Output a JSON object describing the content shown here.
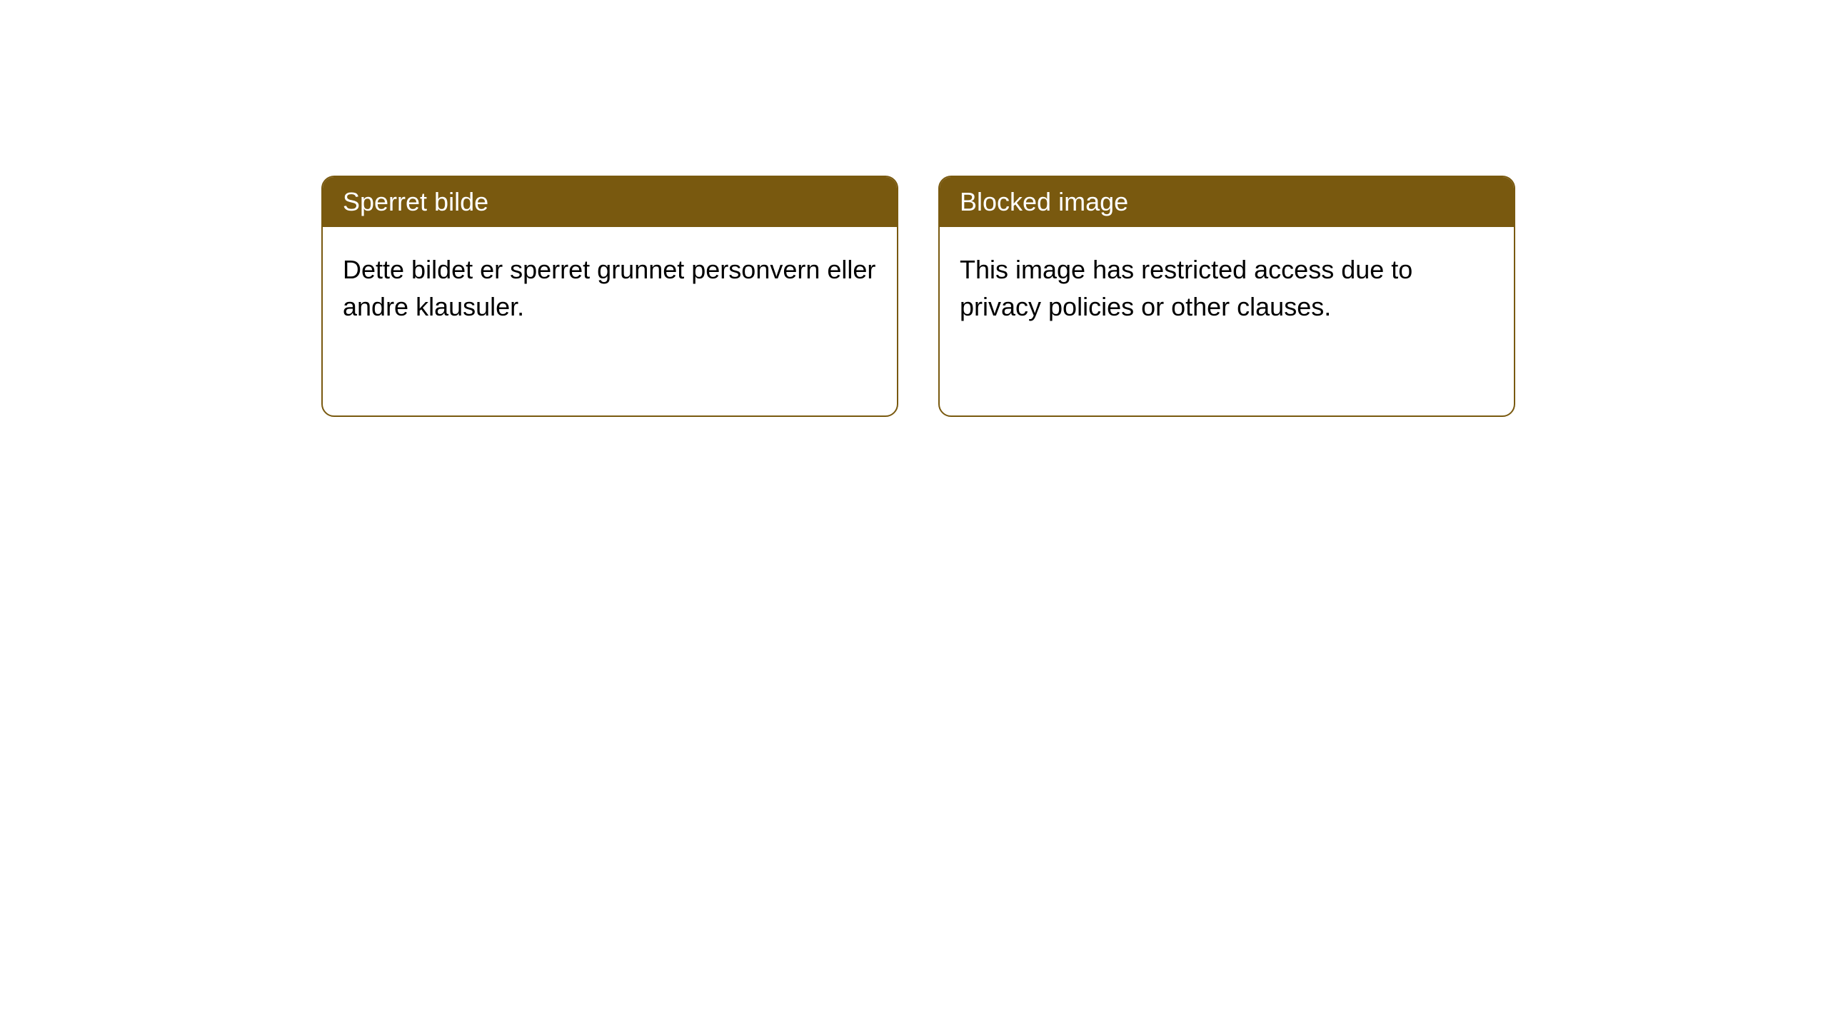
{
  "cards": [
    {
      "title": "Sperret bilde",
      "body": "Dette bildet er sperret grunnet personvern eller andre klausuler."
    },
    {
      "title": "Blocked image",
      "body": "This image has restricted access due to privacy policies or other clauses."
    }
  ],
  "style": {
    "header_background": "#79590f",
    "header_text_color": "#ffffff",
    "border_color": "#79590f",
    "border_width": 2,
    "border_radius": 18,
    "card_background": "#ffffff",
    "body_text_color": "#000000",
    "title_fontsize": 36,
    "body_fontsize": 36,
    "page_background": "#ffffff"
  }
}
